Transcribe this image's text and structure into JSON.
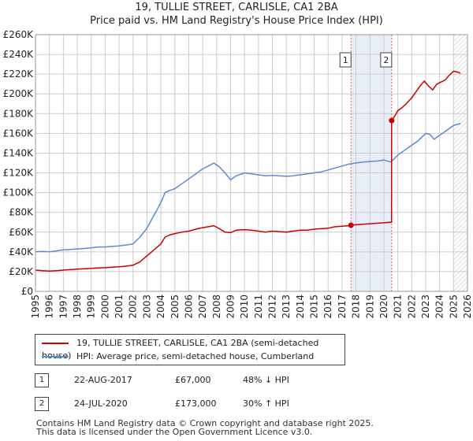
{
  "header": {
    "title": "19, TULLIE STREET, CARLISLE, CA1 2BA",
    "subtitle": "Price paid vs. HM Land Registry's House Price Index (HPI)"
  },
  "colors": {
    "price_paid": "#cc0000",
    "hpi": "#5b8bd0",
    "shade": "#e8eef8",
    "grid": "#cccccc",
    "vline": "#e06060"
  },
  "chart_data": {
    "type": "line",
    "title": "19, TULLIE STREET, CARLISLE, CA1 2BA",
    "subtitle": "Price paid vs. HM Land Registry's House Price Index (HPI)",
    "xlim": [
      1995,
      2026
    ],
    "ylim": [
      0,
      260000
    ],
    "grid": true,
    "y_ticks": [
      {
        "value": 0,
        "label": "£0"
      },
      {
        "value": 20000,
        "label": "£20K"
      },
      {
        "value": 40000,
        "label": "£40K"
      },
      {
        "value": 60000,
        "label": "£60K"
      },
      {
        "value": 80000,
        "label": "£80K"
      },
      {
        "value": 100000,
        "label": "£100K"
      },
      {
        "value": 120000,
        "label": "£120K"
      },
      {
        "value": 140000,
        "label": "£140K"
      },
      {
        "value": 160000,
        "label": "£160K"
      },
      {
        "value": 180000,
        "label": "£180K"
      },
      {
        "value": 200000,
        "label": "£200K"
      },
      {
        "value": 220000,
        "label": "£220K"
      },
      {
        "value": 240000,
        "label": "£240K"
      },
      {
        "value": 260000,
        "label": "£260K"
      }
    ],
    "x_ticks": [
      "1995",
      "1996",
      "1997",
      "1998",
      "1999",
      "2000",
      "2001",
      "2002",
      "2003",
      "2004",
      "2005",
      "2006",
      "2007",
      "2008",
      "2009",
      "2010",
      "2011",
      "2012",
      "2013",
      "2014",
      "2015",
      "2016",
      "2017",
      "2018",
      "2019",
      "2020",
      "2021",
      "2022",
      "2023",
      "2024",
      "2025",
      "2026"
    ],
    "shaded_region": [
      2017.64,
      2020.56
    ],
    "future_hatch_from": 2025.0,
    "series": [
      {
        "name": "19, TULLIE STREET, CARLISLE, CA1 2BA (semi-detached house)",
        "color": "#cc0000",
        "x": [
          1995.0,
          1995.5,
          1996.0,
          1996.5,
          1997.0,
          1997.5,
          1998.0,
          1998.5,
          1999.0,
          1999.5,
          2000.0,
          2000.5,
          2001.0,
          2001.5,
          2002.0,
          2002.5,
          2003.0,
          2003.5,
          2004.0,
          2004.3,
          2004.6,
          2005.0,
          2005.5,
          2006.0,
          2006.5,
          2007.0,
          2007.4,
          2007.8,
          2008.2,
          2008.6,
          2009.0,
          2009.4,
          2010.0,
          2010.5,
          2011.0,
          2011.5,
          2012.0,
          2012.5,
          2013.0,
          2013.5,
          2014.0,
          2014.5,
          2015.0,
          2015.5,
          2016.0,
          2016.5,
          2017.0,
          2017.5,
          2017.64,
          2018.0,
          2018.5,
          2019.0,
          2019.5,
          2020.0,
          2020.4,
          2020.55,
          2020.56,
          2020.8,
          2021.0,
          2021.3,
          2021.6,
          2022.0,
          2022.3,
          2022.6,
          2022.9,
          2023.2,
          2023.5,
          2023.8,
          2024.1,
          2024.4,
          2024.7,
          2025.0,
          2025.3,
          2025.5
        ],
        "values": [
          21500,
          21000,
          20500,
          21000,
          21500,
          22000,
          22500,
          23000,
          23200,
          23800,
          24000,
          24500,
          25000,
          25500,
          26500,
          30000,
          36000,
          42000,
          48000,
          55000,
          57000,
          58500,
          60000,
          61000,
          63000,
          64500,
          65500,
          66500,
          63500,
          60000,
          59500,
          62000,
          62500,
          62000,
          61000,
          60000,
          61000,
          60500,
          60000,
          61000,
          62000,
          62000,
          63000,
          63500,
          64000,
          65500,
          66000,
          66500,
          67000,
          67500,
          68000,
          68500,
          69000,
          69500,
          70000,
          70000,
          173000,
          178000,
          183000,
          186000,
          190000,
          196000,
          202000,
          208000,
          213000,
          208000,
          204000,
          210000,
          212000,
          214000,
          219000,
          223000,
          222000,
          221000
        ],
        "markers": [
          {
            "x": 2017.64,
            "y": 67000
          },
          {
            "x": 2020.56,
            "y": 173000
          }
        ]
      },
      {
        "name": "HPI: Average price, semi-detached house, Cumberland",
        "color": "#5b8bd0",
        "x": [
          1995.0,
          1995.5,
          1996.0,
          1996.5,
          1997.0,
          1997.5,
          1998.0,
          1998.5,
          1999.0,
          1999.5,
          2000.0,
          2000.5,
          2001.0,
          2001.5,
          2002.0,
          2002.5,
          2003.0,
          2003.5,
          2004.0,
          2004.3,
          2004.6,
          2005.0,
          2005.5,
          2006.0,
          2006.5,
          2007.0,
          2007.4,
          2007.8,
          2008.2,
          2008.6,
          2009.0,
          2009.4,
          2010.0,
          2010.5,
          2011.0,
          2011.5,
          2012.0,
          2012.5,
          2013.0,
          2013.5,
          2014.0,
          2014.5,
          2015.0,
          2015.5,
          2016.0,
          2016.5,
          2017.0,
          2017.5,
          2018.0,
          2018.5,
          2019.0,
          2019.5,
          2020.0,
          2020.5,
          2021.0,
          2021.5,
          2022.0,
          2022.5,
          2023.0,
          2023.3,
          2023.6,
          2024.0,
          2024.5,
          2025.0,
          2025.5
        ],
        "values": [
          40000,
          40500,
          40000,
          41000,
          42000,
          42500,
          43000,
          43500,
          44000,
          45000,
          45000,
          45500,
          46000,
          47000,
          48000,
          55000,
          64000,
          77000,
          90000,
          100000,
          102000,
          104000,
          109000,
          114000,
          119000,
          124000,
          127000,
          130000,
          126000,
          120000,
          113000,
          117000,
          120000,
          119000,
          118000,
          117000,
          117500,
          117000,
          116500,
          117000,
          118000,
          119000,
          120000,
          121000,
          123000,
          125000,
          127000,
          129000,
          130000,
          131000,
          131500,
          132000,
          133000,
          131000,
          138000,
          143000,
          148000,
          153000,
          160000,
          159000,
          154000,
          158000,
          163000,
          168000,
          170000
        ]
      }
    ],
    "annotations": [
      {
        "label": "1",
        "x": 2017.64
      },
      {
        "label": "2",
        "x": 2020.56
      }
    ]
  },
  "legend": {
    "items": [
      {
        "label": "19, TULLIE STREET, CARLISLE, CA1 2BA (semi-detached house)",
        "color": "#cc0000"
      },
      {
        "label": "HPI: Average price, semi-detached house, Cumberland",
        "color": "#5b8bd0"
      }
    ]
  },
  "transactions": [
    {
      "num": "1",
      "date": "22-AUG-2017",
      "price": "£67,000",
      "hpi": "48% ↓ HPI"
    },
    {
      "num": "2",
      "date": "24-JUL-2020",
      "price": "£173,000",
      "hpi": "30% ↑ HPI"
    }
  ],
  "footer": {
    "line1": "Contains HM Land Registry data © Crown copyright and database right 2025.",
    "line2": "This data is licensed under the Open Government Licence v3.0."
  }
}
